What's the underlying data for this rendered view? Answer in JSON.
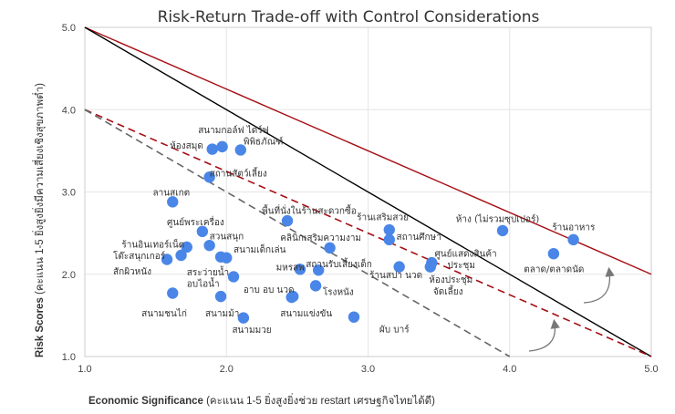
{
  "chart_data": {
    "type": "scatter",
    "title": "Risk-Return Trade-off with Control Considerations",
    "xlabel_bold": "Economic Significance",
    "xlabel_rest": " (คะแนน 1-5 ยิ่งสูงยิ่งช่วย restart เศรษฐกิจไทยได้ดี)",
    "ylabel_bold": "Risk Scores",
    "ylabel_rest": " (คะแนน 1-5 ยิ่งสูงยิ่งมีความเสี่ยงเชิงสุขภาพต่ำ)",
    "xlim": [
      1.0,
      5.0
    ],
    "ylim": [
      1.0,
      5.0
    ],
    "xticks": [
      "1.0",
      "2.0",
      "3.0",
      "4.0",
      "5.0"
    ],
    "yticks": [
      "1.0",
      "2.0",
      "3.0",
      "4.0",
      "5.0"
    ],
    "grid": true,
    "point_color": "#4a86e8",
    "lines": [
      {
        "style": "solid",
        "color": "#a50f15",
        "x": [
          1.0,
          5.0
        ],
        "y": [
          5.0,
          2.0
        ]
      },
      {
        "style": "solid",
        "color": "#000000",
        "x": [
          1.0,
          5.0
        ],
        "y": [
          5.0,
          1.0
        ]
      },
      {
        "style": "dashed",
        "color": "#a50f15",
        "x": [
          1.0,
          5.0
        ],
        "y": [
          4.0,
          1.0
        ]
      },
      {
        "style": "dashed",
        "color": "#666666",
        "x": [
          1.0,
          4.0
        ],
        "y": [
          4.0,
          1.0
        ]
      }
    ],
    "points": [
      {
        "label": "สนามกอล์ฟ ไดร์ฟ",
        "x": 1.97,
        "y": 3.55,
        "lx": 1.8,
        "ly": 3.76
      },
      {
        "label": "ห้องสมุด",
        "x": 1.9,
        "y": 3.52,
        "lx": 1.6,
        "ly": 3.57
      },
      {
        "label": "พิพิธภัณฑ์",
        "x": 2.1,
        "y": 3.51,
        "lx": 2.12,
        "ly": 3.62
      },
      {
        "label": "สถานสัตว์เลี้ยง",
        "x": 1.88,
        "y": 3.18,
        "lx": 1.88,
        "ly": 3.23
      },
      {
        "label": "ลานสเกต",
        "x": 1.62,
        "y": 2.88,
        "lx": 1.48,
        "ly": 3.0
      },
      {
        "label": "พื้นที่นั่งในร้านสะดวกซื้อ",
        "x": 2.43,
        "y": 2.65,
        "lx": 2.25,
        "ly": 2.78
      },
      {
        "label": "ศูนย์พระเครื่อง",
        "x": 1.83,
        "y": 2.52,
        "lx": 1.58,
        "ly": 2.64
      },
      {
        "label": "สวนสนุก",
        "x": 1.88,
        "y": 2.35,
        "lx": 1.88,
        "ly": 2.47
      },
      {
        "label": "ร้านอินเทอร์เน็ต",
        "x": 1.72,
        "y": 2.33,
        "lx": 1.26,
        "ly": 2.37
      },
      {
        "label": "โต๊ะสนุกเกอร์",
        "x": 1.68,
        "y": 2.23,
        "lx": 1.2,
        "ly": 2.23
      },
      {
        "label": "สนามเด็กเล่น",
        "x": 1.96,
        "y": 2.21,
        "lx": 2.05,
        "ly": 2.31
      },
      {
        "label": "สักผิวหนัง",
        "x": 1.58,
        "y": 2.18,
        "lx": 1.2,
        "ly": 2.04
      },
      {
        "label": "สระว่ายน้ำ",
        "x": 2.0,
        "y": 2.2,
        "lx": 1.72,
        "ly": 2.03
      },
      {
        "label": "อบไอน้ำ",
        "x": 2.05,
        "y": 1.97,
        "lx": 1.72,
        "ly": 1.89
      },
      {
        "label": "สนามชนไก่",
        "x": 1.62,
        "y": 1.77,
        "lx": 1.4,
        "ly": 1.53
      },
      {
        "label": "สนามม้า",
        "x": 1.96,
        "y": 1.73,
        "lx": 1.85,
        "ly": 1.53
      },
      {
        "label": "สนามมวย",
        "x": 2.12,
        "y": 1.47,
        "lx": 2.04,
        "ly": 1.33
      },
      {
        "label": "อาบ อบ นวด",
        "x": 2.47,
        "y": 1.73,
        "lx": 2.12,
        "ly": 1.82
      },
      {
        "label": "สนามแข่งขัน",
        "x": 2.46,
        "y": 1.72,
        "lx": 2.38,
        "ly": 1.53
      },
      {
        "label": "มหรสพ",
        "x": 2.52,
        "y": 2.06,
        "lx": 2.35,
        "ly": 2.09
      },
      {
        "label": "โรงหนัง",
        "x": 2.63,
        "y": 1.86,
        "lx": 2.68,
        "ly": 1.79
      },
      {
        "label": "คลินิกเสริมความงาม",
        "x": 2.73,
        "y": 2.32,
        "lx": 2.38,
        "ly": 2.45
      },
      {
        "label": "สถานรับเลี้ยงเด็ก",
        "x": 2.65,
        "y": 2.05,
        "lx": 2.56,
        "ly": 2.13
      },
      {
        "label": "ร้านเสริมสวย",
        "x": 3.15,
        "y": 2.54,
        "lx": 2.92,
        "ly": 2.7
      },
      {
        "label": "สถานศึกษา",
        "x": 3.15,
        "y": 2.42,
        "lx": 3.2,
        "ly": 2.46
      },
      {
        "label": "ร้านสปา นวด",
        "x": 3.22,
        "y": 2.09,
        "lx": 3.01,
        "ly": 2.0
      },
      {
        "label": "ผับ บาร์",
        "x": 2.9,
        "y": 1.48,
        "lx": 3.08,
        "ly": 1.34
      },
      {
        "label": "ศูนย์แสดงสินค้า",
        "x": 3.45,
        "y": 2.14,
        "lx": 3.47,
        "ly": 2.26
      },
      {
        "label": "ประชุม",
        "x": 3.45,
        "y": 2.14,
        "lx": 3.56,
        "ly": 2.12
      },
      {
        "label": "ห้องประชุม",
        "x": 3.44,
        "y": 2.09,
        "lx": 3.43,
        "ly": 1.94
      },
      {
        "label": "จัดเลี้ยง",
        "x": 3.44,
        "y": 2.09,
        "lx": 3.46,
        "ly": 1.8
      },
      {
        "label": "ห้าง (ไม่รวมซุปเปอร์)",
        "x": 3.95,
        "y": 2.53,
        "lx": 3.62,
        "ly": 2.68
      },
      {
        "label": "ร้านอาหาร",
        "x": 4.45,
        "y": 2.42,
        "lx": 4.3,
        "ly": 2.58
      },
      {
        "label": "ตลาด/ตลาดนัด",
        "x": 4.31,
        "y": 2.25,
        "lx": 4.1,
        "ly": 2.07
      }
    ]
  }
}
